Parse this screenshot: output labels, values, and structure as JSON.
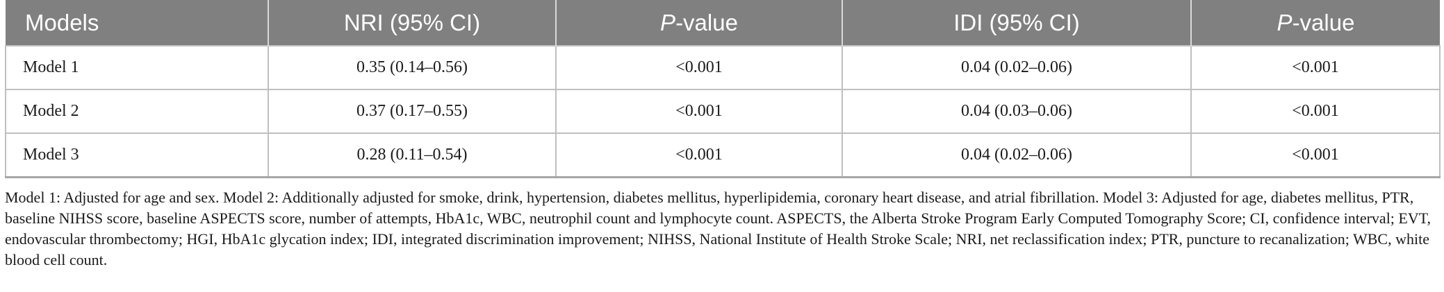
{
  "table": {
    "headers": [
      {
        "label": "Models",
        "italic_prefix": "",
        "suffix": ""
      },
      {
        "label": "NRI (95% CI)",
        "italic_prefix": "",
        "suffix": ""
      },
      {
        "label": "",
        "italic_prefix": "P",
        "suffix": "-value"
      },
      {
        "label": "IDI (95% CI)",
        "italic_prefix": "",
        "suffix": ""
      },
      {
        "label": "",
        "italic_prefix": "P",
        "suffix": "-value"
      }
    ],
    "rows": [
      [
        "Model 1",
        "0.35 (0.14–0.56)",
        "<0.001",
        "0.04 (0.02–0.06)",
        "<0.001"
      ],
      [
        "Model 2",
        "0.37 (0.17–0.55)",
        "<0.001",
        "0.04 (0.03–0.06)",
        "<0.001"
      ],
      [
        "Model 3",
        "0.28 (0.11–0.54)",
        "<0.001",
        "0.04 (0.02–0.06)",
        "<0.001"
      ]
    ],
    "colors": {
      "header_bg": "#808080",
      "header_text": "#ffffff",
      "grid": "#bfbfbf"
    }
  },
  "footnote": "Model 1: Adjusted for age and sex. Model 2: Additionally adjusted for smoke, drink, hypertension, diabetes mellitus, hyperlipidemia, coronary heart disease, and atrial fibrillation. Model 3: Adjusted for age, diabetes mellitus, PTR, baseline NIHSS score, baseline ASPECTS score, number of attempts, HbA1c, WBC, neutrophil count and lymphocyte count. ASPECTS, the Alberta Stroke Program Early Computed Tomography Score; CI, confidence interval; EVT, endovascular thrombectomy; HGI, HbA1c glycation index; IDI, integrated discrimination improvement; NIHSS, National Institute of Health Stroke Scale; NRI, net reclassification index; PTR, puncture to recanalization; WBC, white blood cell count."
}
